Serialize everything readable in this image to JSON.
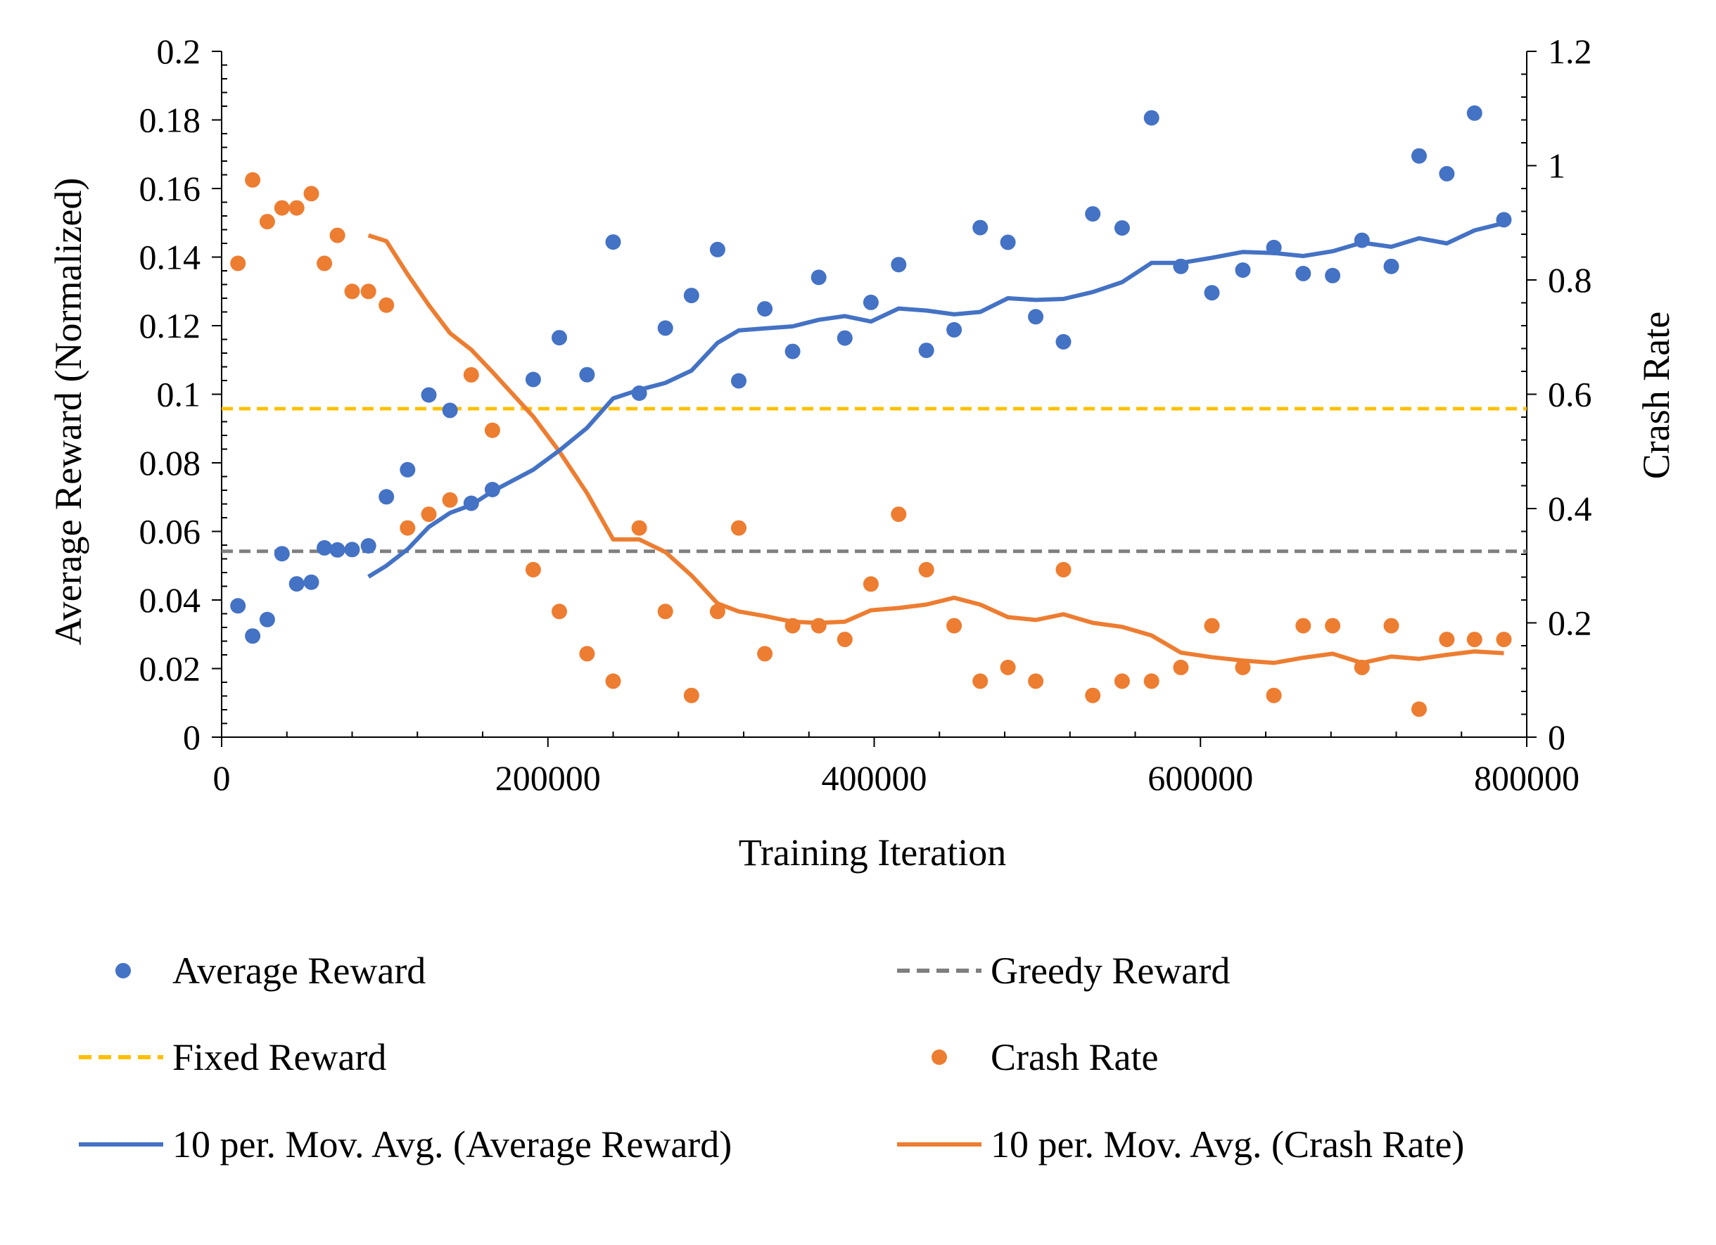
{
  "colors": {
    "reward": "#4472C4",
    "crash": "#ED7D31",
    "fixed": "#FFC000",
    "greedy": "#7F7F7F",
    "axis": "#000000"
  },
  "chart_data": {
    "type": "scatter",
    "title": "",
    "xlabel": "Training Iteration",
    "ylabel_left": "Average Reward (Normalized)",
    "ylabel_right": "Crash Rate",
    "xlim": [
      0,
      800000
    ],
    "ylim_left": [
      0,
      0.2
    ],
    "ylim_right": [
      0,
      1.2
    ],
    "grid": false,
    "legend_position": "bottom",
    "x_ticks": [
      0,
      200000,
      400000,
      600000,
      800000
    ],
    "x_tick_labels": [
      "0",
      "200000",
      "400000",
      "600000",
      "800000"
    ],
    "y_left_ticks": [
      0,
      0.02,
      0.04,
      0.06,
      0.08,
      0.1,
      0.12,
      0.14,
      0.16,
      0.18,
      0.2
    ],
    "y_left_tick_labels": [
      "0",
      "0.02",
      "0.04",
      "0.06",
      "0.08",
      "0.1",
      "0.12",
      "0.14",
      "0.16",
      "0.18",
      "0.2"
    ],
    "y_right_ticks": [
      0,
      0.2,
      0.4,
      0.6,
      0.8,
      1.0,
      1.2
    ],
    "y_right_tick_labels": [
      "0",
      "0.2",
      "0.4",
      "0.6",
      "0.8",
      "1",
      "1.2"
    ],
    "fixed_reward": 0.0958,
    "greedy_reward": 0.0542,
    "legend": [
      {
        "label": "Average Reward",
        "kind": "marker",
        "series": "reward"
      },
      {
        "label": "Greedy Reward",
        "kind": "dash",
        "series": "greedy"
      },
      {
        "label": "Fixed Reward",
        "kind": "dash",
        "series": "fixed"
      },
      {
        "label": "Crash Rate",
        "kind": "marker",
        "series": "crash"
      },
      {
        "label": "10 per. Mov. Avg. (Average Reward)",
        "kind": "line",
        "series": "reward"
      },
      {
        "label": "10 per. Mov. Avg. (Crash Rate)",
        "kind": "line",
        "series": "crash"
      }
    ],
    "series": [
      {
        "name": "Average Reward",
        "axis": "left",
        "x": [
          10000,
          19000,
          28000,
          37000,
          46000,
          55000,
          63000,
          71000,
          80000,
          90000,
          101000,
          114000,
          127000,
          140000,
          153000,
          166000,
          191000,
          207000,
          224000,
          240000,
          256000,
          272000,
          288000,
          304000,
          317000,
          333000,
          350000,
          366000,
          382000,
          398000,
          415000,
          432000,
          449000,
          465000,
          482000,
          499000,
          516000,
          534000,
          552000,
          570000,
          588000,
          607000,
          626000,
          645000,
          663000,
          681000,
          699000,
          717000,
          734000,
          751000,
          768000,
          786000
        ],
        "y": [
          0.0383,
          0.0295,
          0.0343,
          0.0535,
          0.0447,
          0.0452,
          0.0552,
          0.0546,
          0.0547,
          0.0558,
          0.0701,
          0.078,
          0.0998,
          0.0953,
          0.0682,
          0.0722,
          0.1043,
          0.1165,
          0.1057,
          0.1444,
          0.1003,
          0.1193,
          0.1288,
          0.1422,
          0.1039,
          0.1249,
          0.1125,
          0.1341,
          0.1164,
          0.1268,
          0.1378,
          0.1128,
          0.1188,
          0.1486,
          0.1443,
          0.1226,
          0.1153,
          0.1526,
          0.1485,
          0.1806,
          0.1373,
          0.1296,
          0.1362,
          0.1428,
          0.1352,
          0.1346,
          0.1449,
          0.1373,
          0.1695,
          0.1643,
          0.182,
          0.1509
        ]
      },
      {
        "name": "Crash Rate",
        "axis": "right",
        "x": [
          10000,
          19000,
          28000,
          37000,
          46000,
          55000,
          63000,
          71000,
          80000,
          90000,
          101000,
          114000,
          127000,
          140000,
          153000,
          166000,
          191000,
          207000,
          224000,
          240000,
          256000,
          272000,
          288000,
          304000,
          317000,
          333000,
          350000,
          366000,
          382000,
          398000,
          415000,
          432000,
          449000,
          465000,
          482000,
          499000,
          516000,
          534000,
          552000,
          570000,
          588000,
          607000,
          626000,
          645000,
          663000,
          681000,
          699000,
          717000,
          734000,
          751000,
          768000,
          786000
        ],
        "y": [
          0.829,
          0.975,
          0.902,
          0.926,
          0.926,
          0.951,
          0.829,
          0.878,
          0.78,
          0.78,
          0.756,
          0.366,
          0.39,
          0.415,
          0.634,
          0.537,
          0.293,
          0.22,
          0.146,
          0.098,
          0.366,
          0.22,
          0.073,
          0.22,
          0.366,
          0.146,
          0.195,
          0.195,
          0.171,
          0.268,
          0.39,
          0.293,
          0.195,
          0.098,
          0.122,
          0.098,
          0.293,
          0.073,
          0.098,
          0.098,
          0.122,
          0.195,
          0.122,
          0.073,
          0.195,
          0.195,
          0.122,
          0.195,
          0.049,
          0.171,
          0.171,
          0.171
        ]
      },
      {
        "name": "10 per. Mov. Avg. (Average Reward)",
        "axis": "left",
        "x": [
          90000,
          101000,
          114000,
          127000,
          140000,
          153000,
          166000,
          191000,
          207000,
          224000,
          240000,
          256000,
          272000,
          288000,
          304000,
          317000,
          333000,
          350000,
          366000,
          382000,
          398000,
          415000,
          432000,
          449000,
          465000,
          482000,
          499000,
          516000,
          534000,
          552000,
          570000,
          588000,
          607000,
          626000,
          645000,
          663000,
          681000,
          699000,
          717000,
          734000,
          751000,
          768000,
          786000
        ],
        "y": [
          0.0468,
          0.05,
          0.0548,
          0.0613,
          0.0654,
          0.0677,
          0.0717,
          0.078,
          0.0836,
          0.0902,
          0.0988,
          0.1013,
          0.1033,
          0.1069,
          0.115,
          0.1186,
          0.1192,
          0.1198,
          0.1217,
          0.1228,
          0.1212,
          0.125,
          0.1244,
          0.1233,
          0.124,
          0.128,
          0.1275,
          0.1278,
          0.1298,
          0.1327,
          0.1383,
          0.1383,
          0.1398,
          0.1415,
          0.1412,
          0.1403,
          0.1417,
          0.1442,
          0.143,
          0.1455,
          0.144,
          0.1478,
          0.1499
        ]
      },
      {
        "name": "10 per. Mov. Avg. (Crash Rate)",
        "axis": "right",
        "x": [
          90000,
          101000,
          114000,
          127000,
          140000,
          153000,
          166000,
          191000,
          207000,
          224000,
          240000,
          256000,
          272000,
          288000,
          304000,
          317000,
          333000,
          350000,
          366000,
          382000,
          398000,
          415000,
          432000,
          449000,
          465000,
          482000,
          499000,
          516000,
          534000,
          552000,
          570000,
          588000,
          607000,
          626000,
          645000,
          663000,
          681000,
          699000,
          717000,
          734000,
          751000,
          768000,
          786000
        ],
        "y": [
          0.878,
          0.868,
          0.81,
          0.756,
          0.707,
          0.678,
          0.639,
          0.561,
          0.5,
          0.427,
          0.346,
          0.346,
          0.324,
          0.283,
          0.234,
          0.22,
          0.212,
          0.202,
          0.2,
          0.202,
          0.222,
          0.226,
          0.232,
          0.244,
          0.232,
          0.21,
          0.205,
          0.215,
          0.2,
          0.193,
          0.178,
          0.148,
          0.14,
          0.134,
          0.13,
          0.139,
          0.146,
          0.13,
          0.141,
          0.137,
          0.144,
          0.15,
          0.147
        ]
      }
    ]
  }
}
